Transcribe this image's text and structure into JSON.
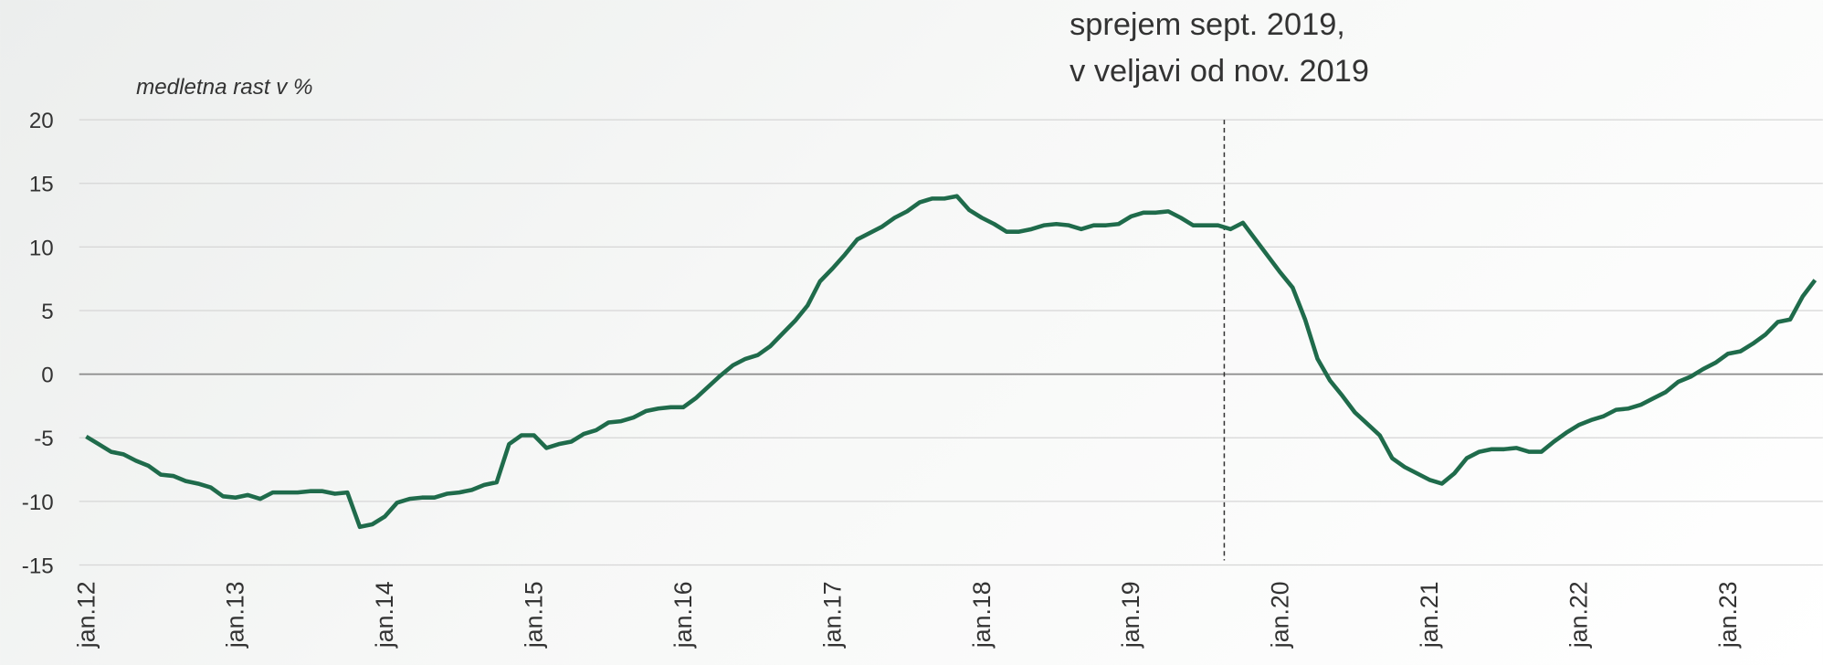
{
  "chart_data": {
    "type": "line",
    "y_axis_label": "medletna rast v %",
    "annotation": {
      "lines": [
        "sprejem sept. 2019,",
        "v veljavi od nov. 2019"
      ],
      "x": 91.5
    },
    "categories": [
      "jan.12",
      null,
      null,
      null,
      null,
      null,
      null,
      null,
      null,
      null,
      null,
      null,
      "jan.13",
      null,
      null,
      null,
      null,
      null,
      null,
      null,
      null,
      null,
      null,
      null,
      "jan.14",
      null,
      null,
      null,
      null,
      null,
      null,
      null,
      null,
      null,
      null,
      null,
      "jan.15",
      null,
      null,
      null,
      null,
      null,
      null,
      null,
      null,
      null,
      null,
      null,
      "jan.16",
      null,
      null,
      null,
      null,
      null,
      null,
      null,
      null,
      null,
      null,
      null,
      "jan.17",
      null,
      null,
      null,
      null,
      null,
      null,
      null,
      null,
      null,
      null,
      null,
      "jan.18",
      null,
      null,
      null,
      null,
      null,
      null,
      null,
      null,
      null,
      null,
      null,
      "jan.19",
      null,
      null,
      null,
      null,
      null,
      null,
      null,
      null,
      null,
      null,
      null,
      "jan.20",
      null,
      null,
      null,
      null,
      null,
      null,
      null,
      null,
      null,
      null,
      null,
      "jan.21",
      null,
      null,
      null,
      null,
      null,
      null,
      null,
      null,
      null,
      null,
      null,
      "jan.22",
      null,
      null,
      null,
      null,
      null,
      null,
      null,
      null,
      null,
      null,
      null,
      "jan.23",
      null,
      null,
      null,
      null,
      null,
      null,
      null
    ],
    "series": [
      {
        "name": "medletna rast",
        "color": "#1f6b4b",
        "values": [
          -4.9,
          -5.5,
          -6.1,
          -6.3,
          -6.8,
          -7.2,
          -7.9,
          -8.0,
          -8.4,
          -8.6,
          -8.9,
          -9.6,
          -9.7,
          -9.5,
          -9.8,
          -9.3,
          -9.3,
          -9.3,
          -9.2,
          -9.2,
          -9.4,
          -9.3,
          -12.0,
          -11.8,
          -11.2,
          -10.1,
          -9.8,
          -9.7,
          -9.7,
          -9.4,
          -9.3,
          -9.1,
          -8.7,
          -8.5,
          -5.5,
          -4.8,
          -4.8,
          -5.8,
          -5.5,
          -5.3,
          -4.7,
          -4.4,
          -3.8,
          -3.7,
          -3.4,
          -2.9,
          -2.7,
          -2.6,
          -2.6,
          -1.9,
          -1.0,
          -0.1,
          0.7,
          1.2,
          1.5,
          2.2,
          3.2,
          4.2,
          5.4,
          7.3,
          8.3,
          9.4,
          10.6,
          11.1,
          11.6,
          12.3,
          12.8,
          13.5,
          13.8,
          13.8,
          14.0,
          12.9,
          12.3,
          11.8,
          11.2,
          11.2,
          11.4,
          11.7,
          11.8,
          11.7,
          11.4,
          11.7,
          11.7,
          11.8,
          12.4,
          12.7,
          12.7,
          12.8,
          12.3,
          11.7,
          11.7,
          11.7,
          11.4,
          11.9,
          10.6,
          9.3,
          8.0,
          6.8,
          4.3,
          1.2,
          -0.5,
          -1.7,
          -3.0,
          -3.9,
          -4.8,
          -6.6,
          -7.3,
          -7.8,
          -8.3,
          -8.6,
          -7.8,
          -6.6,
          -6.1,
          -5.9,
          -5.9,
          -5.8,
          -6.1,
          -6.1,
          -5.3,
          -4.6,
          -4.0,
          -3.6,
          -3.3,
          -2.8,
          -2.7,
          -2.4,
          -1.9,
          -1.4,
          -0.6,
          -0.2,
          0.4,
          0.9,
          1.6,
          1.8,
          2.4,
          3.1,
          4.1,
          4.3,
          6.1,
          7.4
        ]
      }
    ],
    "ylim": [
      -15,
      20
    ],
    "yticks": [
      -15,
      -10,
      -5,
      0,
      5,
      10,
      15,
      20
    ],
    "grid": true
  }
}
